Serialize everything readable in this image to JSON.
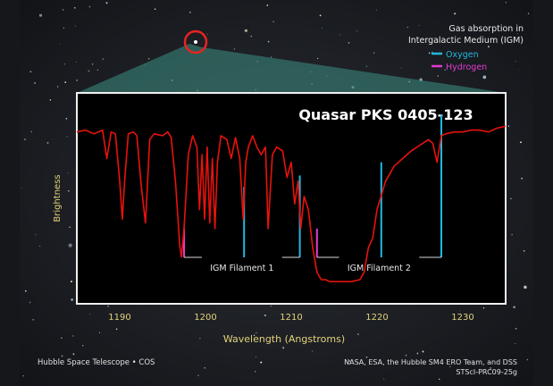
{
  "colors": {
    "spectrum": "#e8120c",
    "oxygen": "#22b8e0",
    "hydrogen": "#e03bd0",
    "axis_text": "#e3d27a",
    "box_border": "#f0f0f0",
    "circle": "#e8241f"
  },
  "legend": {
    "title_line1": "Gas absorption in",
    "title_line2": "Intergalactic Medium (IGM)",
    "oxygen_label": "Oxygen",
    "hydrogen_label": "Hydrogen",
    "placement": "top-right"
  },
  "credits": {
    "left": "Hubble Space Telescope • COS",
    "right_line1": "NASA, ESA, the Hubble SM4 ERO Team, and DSS",
    "right_line2": "STScI-PRC09-25g"
  },
  "chart_data": {
    "type": "line",
    "title": "Quasar PKS 0405-123",
    "xlabel": "Wavelength (Angstroms)",
    "ylabel": "Brightness",
    "xlim": [
      1185,
      1235
    ],
    "ylim": [
      0,
      1
    ],
    "x_ticks": [
      1190,
      1200,
      1210,
      1220,
      1230
    ],
    "grid": false,
    "series": [
      {
        "name": "",
        "x": [
          1185,
          1186,
          1187,
          1188,
          1188.5,
          1189,
          1189.5,
          1190,
          1190.3,
          1190.6,
          1191,
          1191.6,
          1192,
          1192.5,
          1193,
          1193.2,
          1193.5,
          1194,
          1195,
          1195.6,
          1196,
          1196.5,
          1197,
          1197.2,
          1197.5,
          1198,
          1198.5,
          1199,
          1199.3,
          1199.6,
          1199.9,
          1200.2,
          1200.5,
          1200.8,
          1201.1,
          1201.4,
          1201.8,
          1202.5,
          1203,
          1203.5,
          1204,
          1204.4,
          1204.7,
          1205,
          1205.5,
          1206,
          1206.5,
          1207,
          1207.3,
          1207.8,
          1208.3,
          1209,
          1209.5,
          1210,
          1210.4,
          1210.8,
          1211.1,
          1211.5,
          1212,
          1212.5,
          1213,
          1213.5,
          1214,
          1214.5,
          1215,
          1216,
          1217,
          1218,
          1218.5,
          1219,
          1219.5,
          1220,
          1221,
          1222,
          1223,
          1224,
          1225,
          1226,
          1226.5,
          1227,
          1227.5,
          1228,
          1229,
          1230,
          1231,
          1232,
          1233,
          1234,
          1235
        ],
        "y": [
          0.86,
          0.87,
          0.85,
          0.87,
          0.72,
          0.86,
          0.85,
          0.6,
          0.4,
          0.62,
          0.85,
          0.86,
          0.84,
          0.58,
          0.38,
          0.55,
          0.82,
          0.85,
          0.84,
          0.86,
          0.83,
          0.6,
          0.26,
          0.2,
          0.35,
          0.74,
          0.84,
          0.78,
          0.45,
          0.74,
          0.4,
          0.78,
          0.38,
          0.72,
          0.35,
          0.7,
          0.84,
          0.82,
          0.72,
          0.83,
          0.72,
          0.4,
          0.7,
          0.78,
          0.84,
          0.78,
          0.74,
          0.78,
          0.35,
          0.74,
          0.78,
          0.76,
          0.62,
          0.7,
          0.48,
          0.6,
          0.35,
          0.52,
          0.45,
          0.25,
          0.12,
          0.08,
          0.08,
          0.07,
          0.07,
          0.07,
          0.07,
          0.08,
          0.12,
          0.25,
          0.3,
          0.45,
          0.6,
          0.68,
          0.72,
          0.76,
          0.79,
          0.82,
          0.8,
          0.7,
          0.84,
          0.85,
          0.86,
          0.86,
          0.87,
          0.87,
          0.86,
          0.88,
          0.89
        ]
      }
    ],
    "absorption_lines": [
      {
        "element": "Hydrogen",
        "wavelength": 1197.5,
        "height": 0.35
      },
      {
        "element": "Oxygen",
        "wavelength": 1204.5,
        "height": 0.57
      },
      {
        "element": "Oxygen",
        "wavelength": 1211,
        "height": 0.63
      },
      {
        "element": "Hydrogen",
        "wavelength": 1213,
        "height": 0.35
      },
      {
        "element": "Oxygen",
        "wavelength": 1220.5,
        "height": 0.7
      },
      {
        "element": "Oxygen",
        "wavelength": 1227.5,
        "height": 0.95
      }
    ],
    "annotations": [
      {
        "label": "IGM Filament 1",
        "from": 1197.5,
        "to": 1211
      },
      {
        "label": "IGM Filament 2",
        "from": 1213,
        "to": 1227.5
      }
    ]
  }
}
